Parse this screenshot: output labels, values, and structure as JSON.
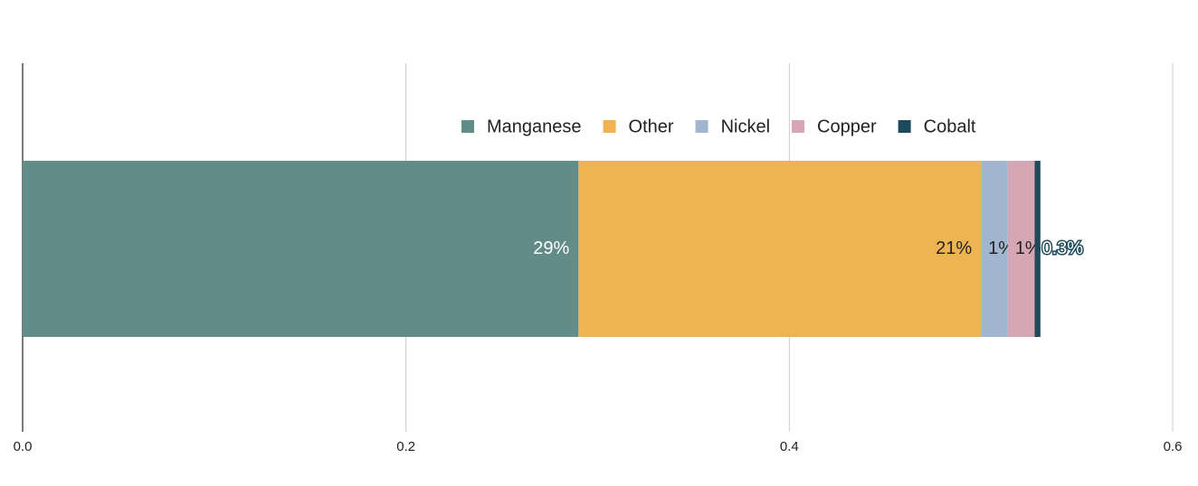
{
  "chart_data": {
    "type": "bar",
    "orientation": "horizontal",
    "stacked": true,
    "categories": [
      null
    ],
    "series": [
      {
        "name": "Manganese",
        "color": "#628c87",
        "values": [
          0.29
        ],
        "value_labels": [
          "29%"
        ]
      },
      {
        "name": "Other",
        "color": "#eeb452",
        "values": [
          0.21
        ],
        "value_labels": [
          "21%"
        ]
      },
      {
        "name": "Nickel",
        "color": "#a2b5cf",
        "values": [
          0.014
        ],
        "value_labels": [
          "1%"
        ]
      },
      {
        "name": "Copper",
        "color": "#d5a6b3",
        "values": [
          0.014
        ],
        "value_labels": [
          "1%"
        ]
      },
      {
        "name": "Cobalt",
        "color": "#1f4a5c",
        "values": [
          0.003
        ],
        "value_labels": [
          "0.3%"
        ]
      }
    ],
    "xlim": [
      0,
      0.6
    ],
    "xticks": [
      {
        "value": 0,
        "label": "0.0"
      },
      0.2,
      0.4,
      0.6
    ],
    "grid": true,
    "legend": "top"
  }
}
